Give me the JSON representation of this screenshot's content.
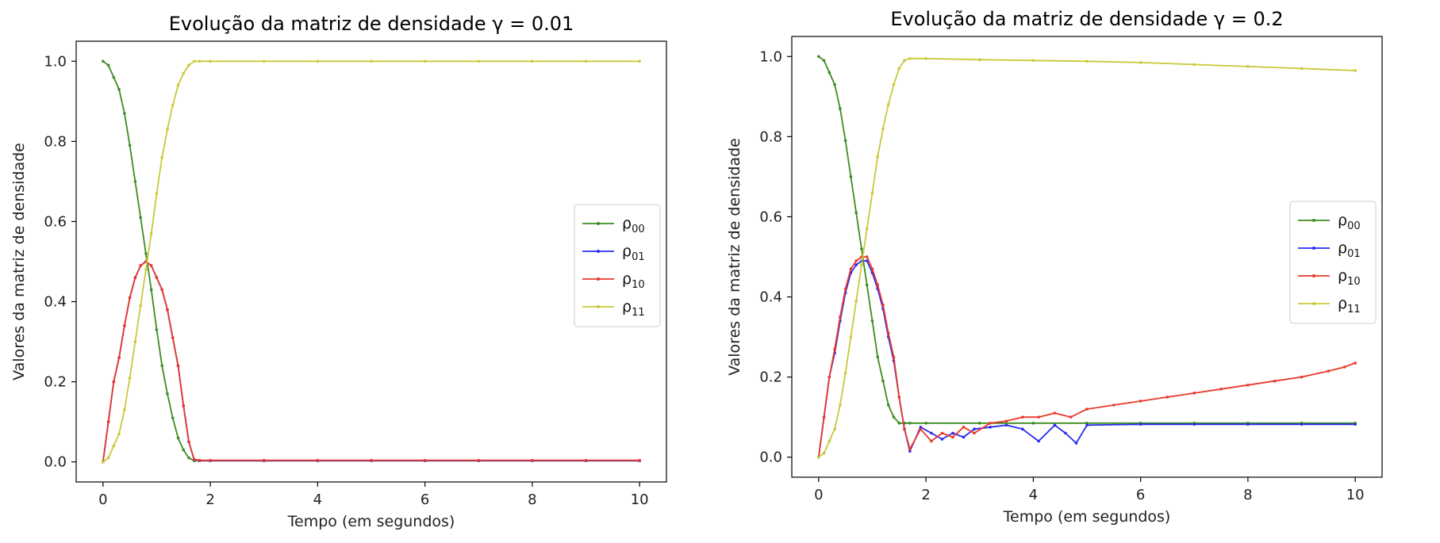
{
  "chart_data": [
    {
      "type": "line",
      "title": "Evolução da matriz de densidade γ = 0.01",
      "xlabel": "Tempo (em segundos)",
      "ylabel": "Valores da matriz de densidade",
      "xlim": [
        -0.5,
        10.5
      ],
      "ylim": [
        -0.05,
        1.05
      ],
      "xticks": [
        0,
        2,
        4,
        6,
        8,
        10
      ],
      "yticks": [
        0.0,
        0.2,
        0.4,
        0.6,
        0.8,
        1.0
      ],
      "xtick_labels": [
        "0",
        "2",
        "4",
        "6",
        "8",
        "10"
      ],
      "ytick_labels": [
        "0.0",
        "0.2",
        "0.4",
        "0.6",
        "0.8",
        "1.0"
      ],
      "grid": false,
      "legend_position": "center-right",
      "series": [
        {
          "name": "ρ00",
          "label_main": "ρ",
          "label_sub": "00",
          "color": "#3c8d1f",
          "x": [
            0,
            0.1,
            0.2,
            0.3,
            0.4,
            0.5,
            0.6,
            0.7,
            0.8,
            0.9,
            1.0,
            1.1,
            1.2,
            1.3,
            1.4,
            1.5,
            1.6,
            1.7,
            1.8,
            2,
            3,
            4,
            5,
            6,
            7,
            8,
            9,
            10
          ],
          "y": [
            1.0,
            0.99,
            0.96,
            0.93,
            0.87,
            0.79,
            0.7,
            0.61,
            0.52,
            0.43,
            0.33,
            0.24,
            0.17,
            0.11,
            0.06,
            0.03,
            0.01,
            0.003,
            0.003,
            0.003,
            0.003,
            0.003,
            0.003,
            0.003,
            0.003,
            0.003,
            0.003,
            0.003
          ]
        },
        {
          "name": "ρ01",
          "label_main": "ρ",
          "label_sub": "01",
          "color": "#2b2bf0",
          "x": [
            0,
            0.1,
            0.2,
            0.3,
            0.4,
            0.5,
            0.6,
            0.7,
            0.8,
            0.9,
            1.0,
            1.1,
            1.2,
            1.3,
            1.4,
            1.5,
            1.6,
            1.7,
            1.8,
            2,
            3,
            4,
            5,
            6,
            7,
            8,
            9,
            10
          ],
          "y": [
            0.0,
            0.1,
            0.2,
            0.26,
            0.34,
            0.41,
            0.46,
            0.49,
            0.5,
            0.49,
            0.46,
            0.43,
            0.38,
            0.31,
            0.24,
            0.14,
            0.05,
            0.005,
            0.003,
            0.003,
            0.003,
            0.003,
            0.003,
            0.003,
            0.003,
            0.003,
            0.003,
            0.003
          ]
        },
        {
          "name": "ρ10",
          "label_main": "ρ",
          "label_sub": "10",
          "color": "#e8392a",
          "x": [
            0,
            0.1,
            0.2,
            0.3,
            0.4,
            0.5,
            0.6,
            0.7,
            0.8,
            0.9,
            1.0,
            1.1,
            1.2,
            1.3,
            1.4,
            1.5,
            1.6,
            1.7,
            1.8,
            2,
            3,
            4,
            5,
            6,
            7,
            8,
            9,
            10
          ],
          "y": [
            0.0,
            0.1,
            0.2,
            0.26,
            0.34,
            0.41,
            0.46,
            0.49,
            0.5,
            0.49,
            0.46,
            0.43,
            0.38,
            0.31,
            0.24,
            0.14,
            0.05,
            0.006,
            0.004,
            0.004,
            0.004,
            0.004,
            0.004,
            0.004,
            0.004,
            0.004,
            0.004,
            0.004
          ]
        },
        {
          "name": "ρ11",
          "label_main": "ρ",
          "label_sub": "11",
          "color": "#c9c93a",
          "x": [
            0,
            0.1,
            0.2,
            0.3,
            0.4,
            0.5,
            0.6,
            0.7,
            0.8,
            0.9,
            1.0,
            1.1,
            1.2,
            1.3,
            1.4,
            1.5,
            1.6,
            1.7,
            1.8,
            2,
            3,
            4,
            5,
            6,
            7,
            8,
            9,
            10
          ],
          "y": [
            0.0,
            0.01,
            0.04,
            0.07,
            0.13,
            0.21,
            0.3,
            0.39,
            0.48,
            0.57,
            0.67,
            0.76,
            0.83,
            0.89,
            0.94,
            0.97,
            0.99,
            1.0,
            1.0,
            1.0,
            1.0,
            1.0,
            1.0,
            1.0,
            1.0,
            1.0,
            1.0,
            1.0
          ]
        }
      ]
    },
    {
      "type": "line",
      "title": "Evolução da matriz de densidade γ = 0.2",
      "xlabel": "Tempo (em segundos)",
      "ylabel": "Valores da matriz de densidade",
      "xlim": [
        -0.5,
        10.5
      ],
      "ylim": [
        -0.05,
        1.05
      ],
      "xticks": [
        0,
        2,
        4,
        6,
        8,
        10
      ],
      "yticks": [
        0.0,
        0.2,
        0.4,
        0.6,
        0.8,
        1.0
      ],
      "xtick_labels": [
        "0",
        "2",
        "4",
        "6",
        "8",
        "10"
      ],
      "ytick_labels": [
        "0.0",
        "0.2",
        "0.4",
        "0.6",
        "0.8",
        "1.0"
      ],
      "grid": false,
      "legend_position": "center-right",
      "series": [
        {
          "name": "ρ00",
          "label_main": "ρ",
          "label_sub": "00",
          "color": "#3c8d1f",
          "x": [
            0,
            0.1,
            0.2,
            0.3,
            0.4,
            0.5,
            0.6,
            0.7,
            0.8,
            0.9,
            1.0,
            1.1,
            1.2,
            1.3,
            1.4,
            1.5,
            1.6,
            1.7,
            2,
            3,
            4,
            5,
            6,
            7,
            8,
            9,
            10
          ],
          "y": [
            1.0,
            0.99,
            0.96,
            0.93,
            0.87,
            0.79,
            0.7,
            0.61,
            0.52,
            0.43,
            0.34,
            0.25,
            0.19,
            0.13,
            0.1,
            0.085,
            0.085,
            0.085,
            0.085,
            0.085,
            0.085,
            0.085,
            0.085,
            0.085,
            0.085,
            0.085,
            0.085
          ]
        },
        {
          "name": "ρ01",
          "label_main": "ρ",
          "label_sub": "01",
          "color": "#2b2bf0",
          "x": [
            0,
            0.1,
            0.2,
            0.3,
            0.4,
            0.5,
            0.6,
            0.7,
            0.8,
            0.9,
            1.0,
            1.1,
            1.2,
            1.3,
            1.4,
            1.5,
            1.6,
            1.7,
            1.9,
            2.1,
            2.3,
            2.5,
            2.7,
            2.9,
            3.2,
            3.5,
            3.8,
            4.1,
            4.4,
            4.6,
            4.8,
            5,
            6,
            7,
            8,
            9,
            10
          ],
          "y": [
            0.0,
            0.1,
            0.2,
            0.26,
            0.34,
            0.41,
            0.46,
            0.48,
            0.49,
            0.49,
            0.46,
            0.42,
            0.37,
            0.3,
            0.24,
            0.15,
            0.07,
            0.015,
            0.075,
            0.06,
            0.045,
            0.06,
            0.05,
            0.07,
            0.075,
            0.08,
            0.07,
            0.04,
            0.08,
            0.06,
            0.035,
            0.08,
            0.082,
            0.082,
            0.082,
            0.082,
            0.082
          ]
        },
        {
          "name": "ρ10",
          "label_main": "ρ",
          "label_sub": "10",
          "color": "#e8392a",
          "x": [
            0,
            0.1,
            0.2,
            0.3,
            0.4,
            0.5,
            0.6,
            0.7,
            0.8,
            0.9,
            1.0,
            1.1,
            1.2,
            1.3,
            1.4,
            1.5,
            1.6,
            1.7,
            1.9,
            2.1,
            2.3,
            2.5,
            2.7,
            2.9,
            3.2,
            3.5,
            3.8,
            4.1,
            4.4,
            4.7,
            5,
            5.5,
            6,
            6.5,
            7,
            7.5,
            8,
            8.5,
            9,
            9.5,
            9.8,
            10
          ],
          "y": [
            0.0,
            0.1,
            0.2,
            0.27,
            0.35,
            0.42,
            0.47,
            0.49,
            0.5,
            0.5,
            0.47,
            0.43,
            0.38,
            0.31,
            0.25,
            0.15,
            0.07,
            0.02,
            0.07,
            0.04,
            0.06,
            0.05,
            0.075,
            0.06,
            0.085,
            0.09,
            0.1,
            0.1,
            0.11,
            0.1,
            0.12,
            0.13,
            0.14,
            0.15,
            0.16,
            0.17,
            0.18,
            0.19,
            0.2,
            0.215,
            0.225,
            0.235
          ]
        },
        {
          "name": "ρ11",
          "label_main": "ρ",
          "label_sub": "11",
          "color": "#c9c93a",
          "x": [
            0,
            0.1,
            0.2,
            0.3,
            0.4,
            0.5,
            0.6,
            0.7,
            0.8,
            0.9,
            1.0,
            1.1,
            1.2,
            1.3,
            1.4,
            1.5,
            1.6,
            1.7,
            2,
            3,
            4,
            5,
            6,
            7,
            8,
            9,
            10
          ],
          "y": [
            0.0,
            0.01,
            0.04,
            0.07,
            0.13,
            0.21,
            0.3,
            0.39,
            0.48,
            0.57,
            0.66,
            0.75,
            0.82,
            0.88,
            0.93,
            0.97,
            0.99,
            0.995,
            0.995,
            0.992,
            0.99,
            0.988,
            0.985,
            0.98,
            0.975,
            0.97,
            0.965
          ]
        }
      ]
    }
  ]
}
